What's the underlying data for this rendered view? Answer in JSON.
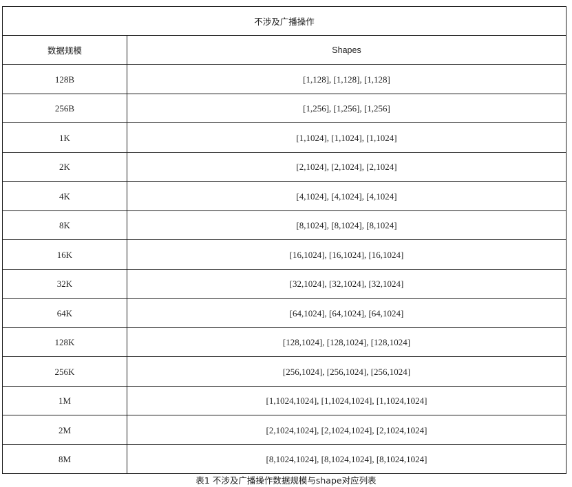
{
  "table": {
    "title": "不涉及广播操作",
    "headers": {
      "size": "数据规模",
      "shapes": "Shapes"
    },
    "rows": [
      {
        "size": "128B",
        "shapes": "[1,128], [1,128], [1,128]"
      },
      {
        "size": "256B",
        "shapes": "[1,256], [1,256], [1,256]"
      },
      {
        "size": "1K",
        "shapes": "[1,1024], [1,1024], [1,1024]"
      },
      {
        "size": "2K",
        "shapes": "[2,1024], [2,1024], [2,1024]"
      },
      {
        "size": "4K",
        "shapes": "[4,1024], [4,1024], [4,1024]"
      },
      {
        "size": "8K",
        "shapes": "[8,1024], [8,1024], [8,1024]"
      },
      {
        "size": "16K",
        "shapes": "[16,1024], [16,1024], [16,1024]"
      },
      {
        "size": "32K",
        "shapes": "[32,1024], [32,1024], [32,1024]"
      },
      {
        "size": "64K",
        "shapes": "[64,1024], [64,1024], [64,1024]"
      },
      {
        "size": "128K",
        "shapes": "[128,1024], [128,1024], [128,1024]"
      },
      {
        "size": "256K",
        "shapes": "[256,1024], [256,1024], [256,1024]"
      },
      {
        "size": "1M",
        "shapes": "[1,1024,1024], [1,1024,1024], [1,1024,1024]"
      },
      {
        "size": "2M",
        "shapes": "[2,1024,1024], [2,1024,1024], [2,1024,1024]"
      },
      {
        "size": "8M",
        "shapes": "[8,1024,1024], [8,1024,1024], [8,1024,1024]"
      }
    ]
  },
  "caption": "表1  不涉及广播操作数据规模与shape对应列表"
}
